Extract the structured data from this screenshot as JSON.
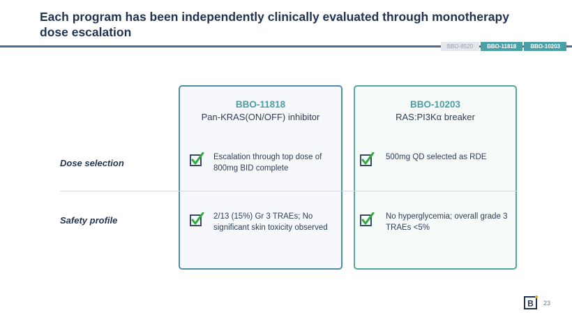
{
  "slide": {
    "title": "Each program has been independently clinically evaluated through monotherapy dose escalation",
    "page_number": "23"
  },
  "tabs": [
    {
      "label": "BBO-8520",
      "active": false
    },
    {
      "label": "BBO-11818",
      "active": true
    },
    {
      "label": "BBO-10203",
      "active": true
    }
  ],
  "programs": [
    {
      "name": "BBO-11818",
      "subtitle": "Pan-KRAS(ON/OFF) inhibitor",
      "dose_selection": "Escalation through top dose of 800mg BID complete",
      "safety_profile": "2/13 (15%) Gr 3 TRAEs; No significant skin toxicity observed"
    },
    {
      "name": "BBO-10203",
      "subtitle": "RAS:PI3Kα breaker",
      "dose_selection": "500mg QD selected as RDE",
      "safety_profile": "No hyperglycemia; overall grade 3 TRAEs <5%"
    }
  ],
  "rows": {
    "dose_selection_label": "Dose selection",
    "safety_profile_label": "Safety profile"
  },
  "colors": {
    "accent_teal": "#4aa0a6",
    "navy": "#1f3350",
    "check_green": "#2eab3c"
  },
  "icons": {
    "check": "checkbox-checked-icon",
    "logo": "bridgebio-logo-icon"
  }
}
